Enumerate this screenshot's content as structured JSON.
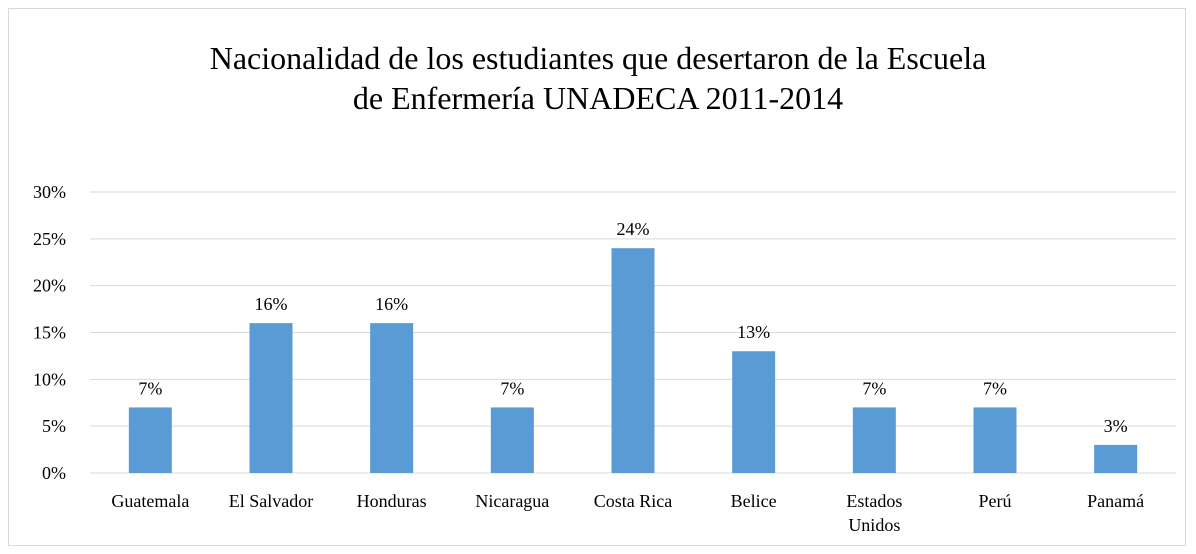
{
  "chart_data": {
    "type": "bar",
    "title_lines": [
      "Nacionalidad de los estudiantes que desertaron de la Escuela",
      "de Enfermería UNADECA 2011-2014"
    ],
    "categories": [
      [
        "Guatemala"
      ],
      [
        "El Salvador"
      ],
      [
        "Honduras"
      ],
      [
        "Nicaragua"
      ],
      [
        "Costa Rica"
      ],
      [
        "Belice"
      ],
      [
        "Estados",
        "Unidos"
      ],
      [
        "Perú"
      ],
      [
        "Panamá"
      ]
    ],
    "values": [
      7,
      16,
      16,
      7,
      24,
      13,
      7,
      7,
      3
    ],
    "data_labels": [
      "7%",
      "16%",
      "16%",
      "7%",
      "24%",
      "13%",
      "7%",
      "7%",
      "3%"
    ],
    "ylim": [
      0,
      30
    ],
    "yticks": [
      0,
      5,
      10,
      15,
      20,
      25,
      30
    ],
    "ytick_labels": [
      "0%",
      "5%",
      "10%",
      "15%",
      "20%",
      "25%",
      "30%"
    ],
    "grid": true,
    "bar_color": "#5b9bd5",
    "grid_color": "#d9d9d9"
  }
}
